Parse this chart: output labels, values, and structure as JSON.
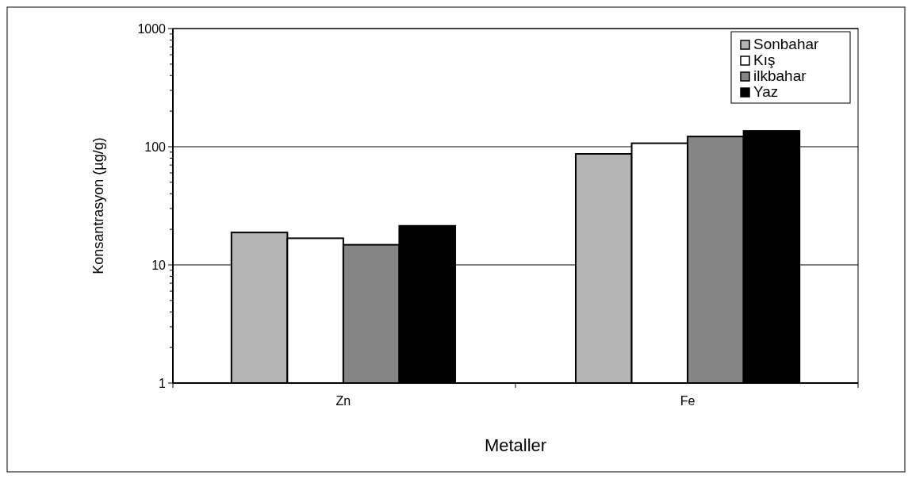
{
  "chart_data": {
    "type": "bar",
    "xlabel": "Metaller",
    "ylabel": "Konsantrasyon (µg/g)",
    "categories": [
      "Zn",
      "Fe"
    ],
    "series": [
      {
        "name": "Sonbahar",
        "color": "#b4b4b4",
        "values": [
          18.8,
          87
        ]
      },
      {
        "name": "Kış",
        "color": "#ffffff",
        "values": [
          16.8,
          107
        ]
      },
      {
        "name": "ilkbahar",
        "color": "#858585",
        "values": [
          14.8,
          122
        ]
      },
      {
        "name": "Yaz",
        "color": "#000000",
        "values": [
          21.4,
          136
        ]
      }
    ],
    "log": true,
    "ylim": [
      1,
      1000
    ],
    "yticks": [
      1,
      10,
      100,
      1000
    ],
    "grid": "y",
    "legend": "top right"
  }
}
